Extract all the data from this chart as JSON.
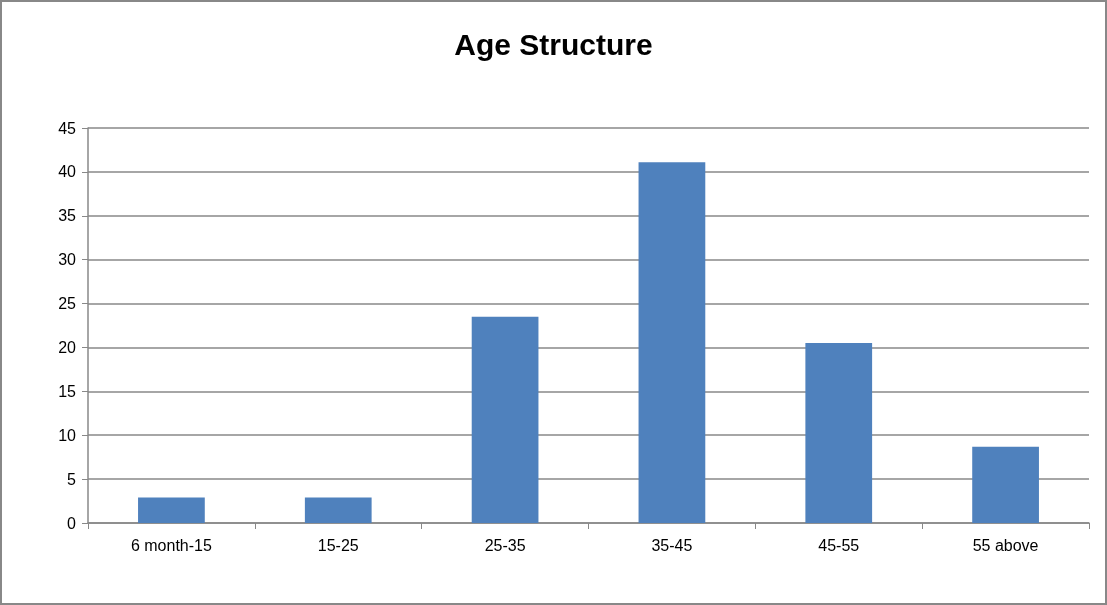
{
  "chart_data": {
    "type": "bar",
    "title": "Age Structure",
    "categories": [
      "6 month-15",
      "15-25",
      "25-35",
      "35-45",
      "45-55",
      "55 above"
    ],
    "values": [
      2.9,
      2.9,
      23.5,
      41.1,
      20.5,
      8.7
    ],
    "color": "#4f81bd",
    "ylim": [
      0,
      45
    ],
    "yticks": [
      0,
      5,
      10,
      15,
      20,
      25,
      30,
      35,
      40,
      45
    ],
    "grid": "y"
  }
}
